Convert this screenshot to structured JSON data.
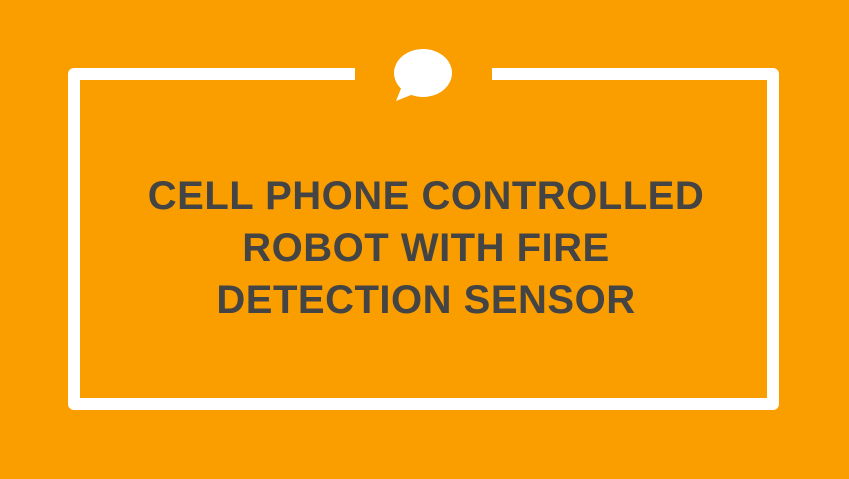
{
  "slide": {
    "background_color": "#FA9E00",
    "frame_color": "#FFFFFF",
    "text_color": "#444444",
    "icon": "speech-bubble-icon",
    "title_lines": [
      "CELL PHONE CONTROLLED",
      "ROBOT WITH FIRE",
      "DETECTION SENSOR"
    ]
  }
}
